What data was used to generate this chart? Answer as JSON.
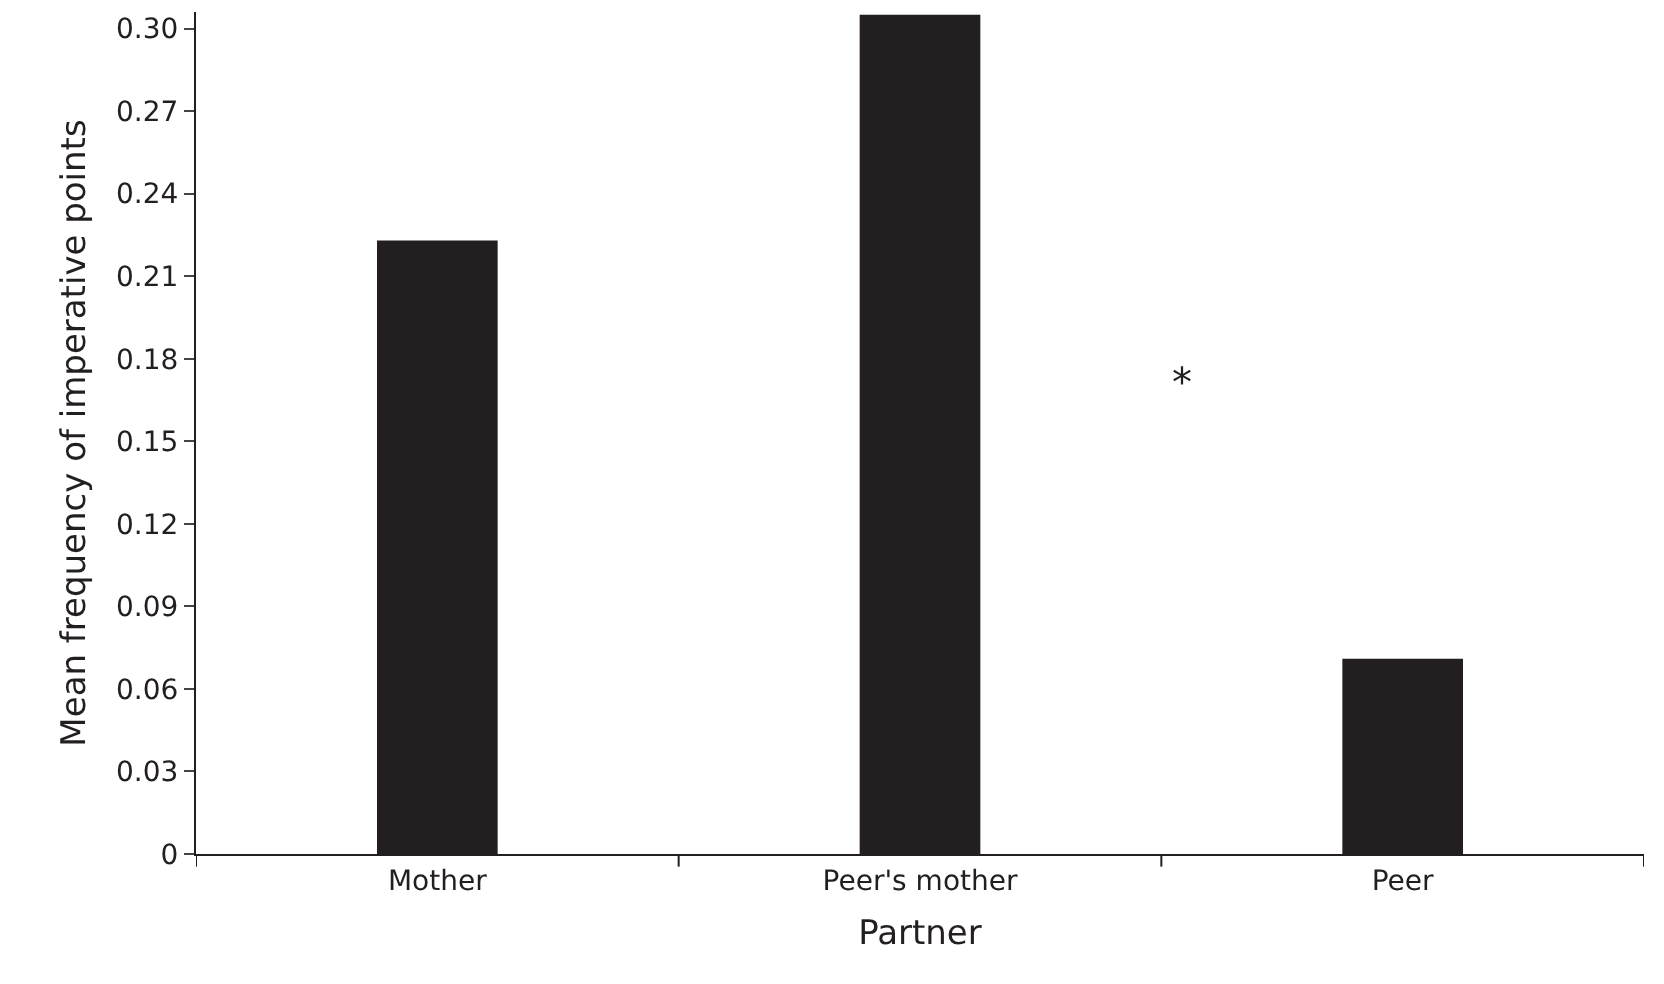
{
  "chart_data": {
    "type": "bar",
    "xlabel": "Partner",
    "ylabel": "Mean frequency of imperative points",
    "categories": [
      "Mother",
      "Peer's mother",
      "Peer"
    ],
    "values": [
      0.223,
      0.305,
      0.071
    ],
    "color": "#231f20",
    "ylim": [
      0,
      0.306
    ],
    "yticks": [
      {
        "value": 0,
        "label": "0"
      },
      {
        "value": 0.03,
        "label": "0.03"
      },
      {
        "value": 0.06,
        "label": "0.06"
      },
      {
        "value": 0.09,
        "label": "0.09"
      },
      {
        "value": 0.12,
        "label": "0.12"
      },
      {
        "value": 0.15,
        "label": "0.15"
      },
      {
        "value": 0.18,
        "label": "0.18"
      },
      {
        "value": 0.21,
        "label": "0.21"
      },
      {
        "value": 0.24,
        "label": "0.24"
      },
      {
        "value": 0.27,
        "label": "0.27"
      },
      {
        "value": 0.3,
        "label": "0.30"
      }
    ],
    "grid": false,
    "annotations": [
      "*"
    ]
  }
}
